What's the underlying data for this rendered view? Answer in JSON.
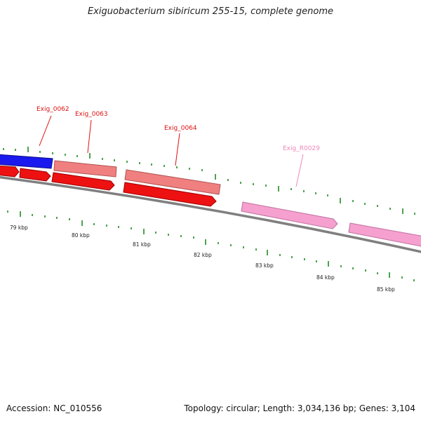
{
  "title": "Exiguobacterium sibiricum 255-15, complete genome",
  "footer": {
    "accession": "Accession: NC_010556",
    "topology": "Topology: circular; Length: 3,034,136 bp; Genes: 3,104"
  },
  "colors": {
    "cds_forward": "#f08080",
    "cds_reverse": "#ee1111",
    "highlight": "#1a1aee",
    "rna": "#f5a0cf",
    "label": "#dd1111",
    "rna_label": "#ee88bb",
    "tick": "#228b22",
    "backbone": "#7f7f7f"
  },
  "gene_labels": [
    {
      "id": "Exig_0062",
      "color": "#dd1111"
    },
    {
      "id": "Exig_0063",
      "color": "#dd1111"
    },
    {
      "id": "Exig_0064",
      "color": "#dd1111"
    },
    {
      "id": "Exig_R0029",
      "color": "#ee88bb"
    }
  ],
  "kbp_labels": [
    "79 kbp",
    "80 kbp",
    "81 kbp",
    "82 kbp",
    "83 kbp",
    "84 kbp",
    "85 kbp"
  ]
}
